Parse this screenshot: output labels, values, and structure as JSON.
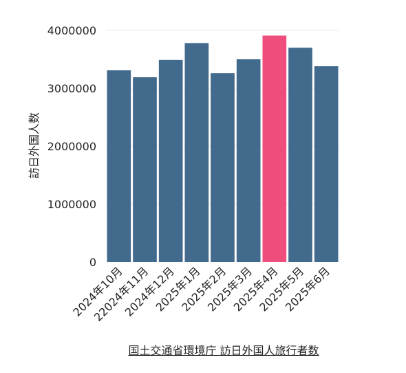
{
  "chart_data": {
    "type": "bar",
    "categories": [
      "2024年10月",
      "22024年11月",
      "2024年12月",
      "2025年1月",
      "2025年2月",
      "2025年3月",
      "2025年4月",
      "2025年5月",
      "2025年6月"
    ],
    "values": [
      3310000,
      3190000,
      3490000,
      3780000,
      3260000,
      3500000,
      3910000,
      3700000,
      3380000
    ],
    "highlight_index": 6,
    "title": "",
    "xlabel": "",
    "ylabel": "訪日外国人数",
    "ylim": [
      0,
      4000000
    ],
    "yticks": [
      0,
      1000000,
      2000000,
      3000000,
      4000000
    ],
    "ytick_labels": [
      "0",
      "1000000",
      "2000000",
      "3000000",
      "4000000"
    ],
    "grid": "horizontal",
    "colors": {
      "bar": "#426a8c",
      "highlight": "#ef4e7d",
      "grid": "#e8e8e8"
    }
  },
  "source": "国土交通省環境庁 訪日外国人旅行者数"
}
